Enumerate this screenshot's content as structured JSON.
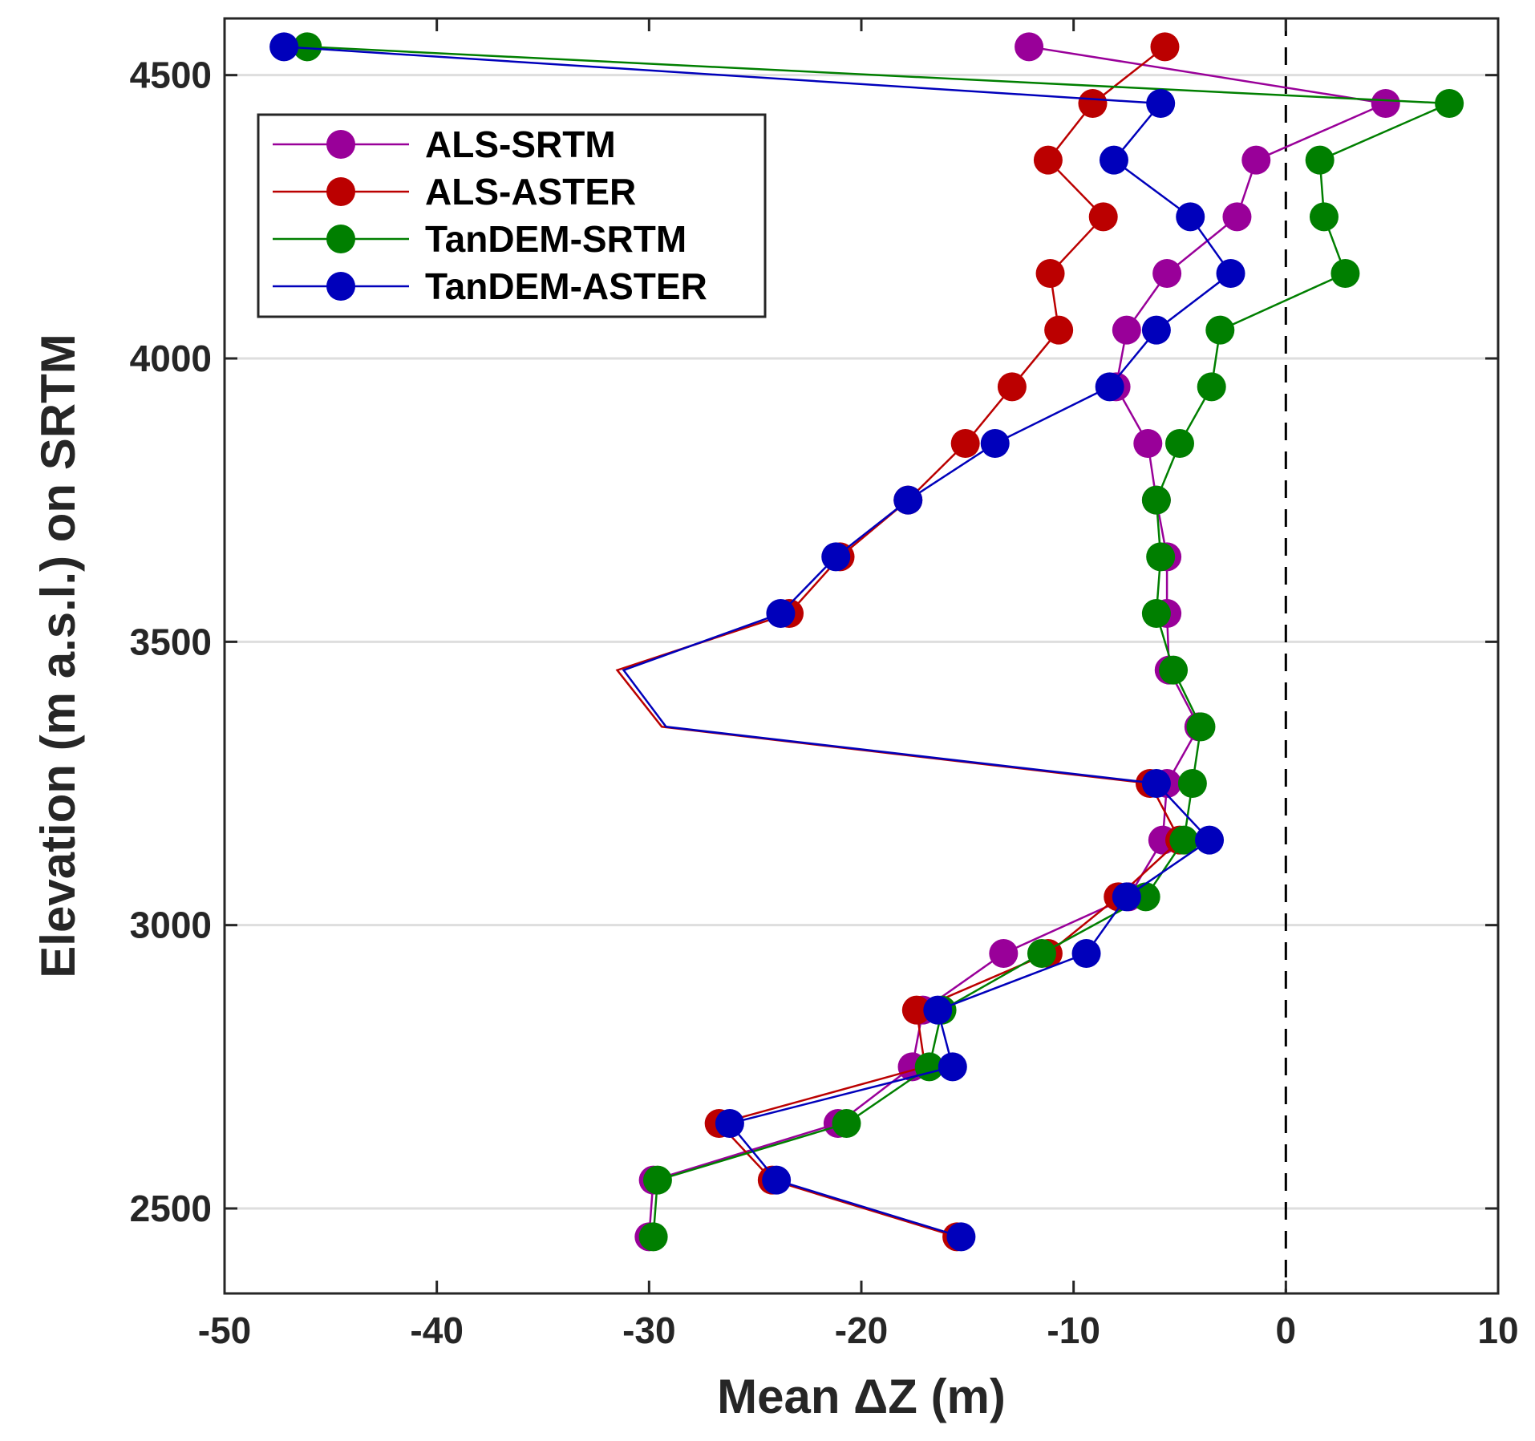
{
  "chart_data": {
    "type": "line",
    "title": "",
    "xlabel": "Mean ΔZ (m)",
    "ylabel": "Elevation (m a.s.l.) on SRTM",
    "xlim": [
      -50,
      10
    ],
    "ylim": [
      2350,
      4600
    ],
    "xticks": [
      -50,
      -40,
      -30,
      -20,
      -10,
      0,
      10
    ],
    "yticks": [
      2500,
      3000,
      3500,
      4000,
      4500
    ],
    "xtick_labels": [
      "-50",
      "-40",
      "-30",
      "-20",
      "-10",
      "0",
      "10"
    ],
    "ytick_labels": [
      "2500",
      "3000",
      "3500",
      "4000",
      "4500"
    ],
    "grid": "horizontal",
    "reference_line": {
      "x": 0,
      "style": "dashed"
    },
    "legend_position": "top-left",
    "series": [
      {
        "name": "ALS-SRTM",
        "color": "#990099",
        "points": [
          {
            "x": -30.0,
            "y": 2450,
            "marker": true
          },
          {
            "x": -29.8,
            "y": 2550,
            "marker": true
          },
          {
            "x": -21.1,
            "y": 2650,
            "marker": true
          },
          {
            "x": -17.6,
            "y": 2750,
            "marker": true
          },
          {
            "x": -17.1,
            "y": 2850,
            "marker": true
          },
          {
            "x": -13.3,
            "y": 2950,
            "marker": true
          },
          {
            "x": -7.4,
            "y": 3050,
            "marker": true
          },
          {
            "x": -5.8,
            "y": 3150,
            "marker": true
          },
          {
            "x": -5.6,
            "y": 3250,
            "marker": true
          },
          {
            "x": -4.1,
            "y": 3350,
            "marker": true
          },
          {
            "x": -5.5,
            "y": 3450,
            "marker": true
          },
          {
            "x": -5.6,
            "y": 3550,
            "marker": true
          },
          {
            "x": -5.6,
            "y": 3650,
            "marker": true
          },
          {
            "x": -6.1,
            "y": 3750,
            "marker": true
          },
          {
            "x": -6.5,
            "y": 3850,
            "marker": true
          },
          {
            "x": -8.0,
            "y": 3950,
            "marker": true
          },
          {
            "x": -7.5,
            "y": 4050,
            "marker": true
          },
          {
            "x": -5.6,
            "y": 4150,
            "marker": true
          },
          {
            "x": -2.3,
            "y": 4250,
            "marker": true
          },
          {
            "x": -1.4,
            "y": 4350,
            "marker": true
          },
          {
            "x": 4.7,
            "y": 4450,
            "marker": true
          },
          {
            "x": -12.1,
            "y": 4550,
            "marker": true
          }
        ]
      },
      {
        "name": "ALS-ASTER",
        "color": "#bb0000",
        "points": [
          {
            "x": -15.5,
            "y": 2450,
            "marker": true
          },
          {
            "x": -24.2,
            "y": 2550,
            "marker": true
          },
          {
            "x": -26.7,
            "y": 2650,
            "marker": true
          },
          {
            "x": -17.0,
            "y": 2750,
            "marker": false
          },
          {
            "x": -17.4,
            "y": 2850,
            "marker": true
          },
          {
            "x": -11.2,
            "y": 2950,
            "marker": true
          },
          {
            "x": -7.9,
            "y": 3050,
            "marker": true
          },
          {
            "x": -5.0,
            "y": 3150,
            "marker": true
          },
          {
            "x": -6.4,
            "y": 3250,
            "marker": true
          },
          {
            "x": -29.4,
            "y": 3350,
            "marker": false
          },
          {
            "x": -31.5,
            "y": 3450,
            "marker": false
          },
          {
            "x": -23.4,
            "y": 3550,
            "marker": true
          },
          {
            "x": -21.0,
            "y": 3650,
            "marker": true
          },
          {
            "x": -17.8,
            "y": 3750,
            "marker": true
          },
          {
            "x": -15.1,
            "y": 3850,
            "marker": true
          },
          {
            "x": -12.9,
            "y": 3950,
            "marker": true
          },
          {
            "x": -10.7,
            "y": 4050,
            "marker": true
          },
          {
            "x": -11.1,
            "y": 4150,
            "marker": true
          },
          {
            "x": -8.6,
            "y": 4250,
            "marker": true
          },
          {
            "x": -11.2,
            "y": 4350,
            "marker": true
          },
          {
            "x": -9.1,
            "y": 4450,
            "marker": true
          },
          {
            "x": -5.7,
            "y": 4550,
            "marker": true
          }
        ]
      },
      {
        "name": "TanDEM-SRTM",
        "color": "#007f00",
        "points": [
          {
            "x": -29.8,
            "y": 2450,
            "marker": true
          },
          {
            "x": -29.6,
            "y": 2550,
            "marker": true
          },
          {
            "x": -20.7,
            "y": 2650,
            "marker": true
          },
          {
            "x": -16.8,
            "y": 2750,
            "marker": true
          },
          {
            "x": -16.2,
            "y": 2850,
            "marker": true
          },
          {
            "x": -11.5,
            "y": 2950,
            "marker": true
          },
          {
            "x": -6.6,
            "y": 3050,
            "marker": true
          },
          {
            "x": -4.8,
            "y": 3150,
            "marker": true
          },
          {
            "x": -4.4,
            "y": 3250,
            "marker": true
          },
          {
            "x": -4.0,
            "y": 3350,
            "marker": true
          },
          {
            "x": -5.3,
            "y": 3450,
            "marker": true
          },
          {
            "x": -6.1,
            "y": 3550,
            "marker": true
          },
          {
            "x": -5.9,
            "y": 3650,
            "marker": true
          },
          {
            "x": -6.1,
            "y": 3750,
            "marker": true
          },
          {
            "x": -5.0,
            "y": 3850,
            "marker": true
          },
          {
            "x": -3.5,
            "y": 3950,
            "marker": true
          },
          {
            "x": -3.1,
            "y": 4050,
            "marker": true
          },
          {
            "x": 2.8,
            "y": 4150,
            "marker": true
          },
          {
            "x": 1.8,
            "y": 4250,
            "marker": true
          },
          {
            "x": 1.6,
            "y": 4350,
            "marker": true
          },
          {
            "x": 7.7,
            "y": 4450,
            "marker": true
          },
          {
            "x": -46.1,
            "y": 4550,
            "marker": true
          }
        ]
      },
      {
        "name": "TanDEM-ASTER",
        "color": "#0000bb",
        "points": [
          {
            "x": -15.3,
            "y": 2450,
            "marker": true
          },
          {
            "x": -24.0,
            "y": 2550,
            "marker": true
          },
          {
            "x": -26.2,
            "y": 2650,
            "marker": true
          },
          {
            "x": -15.7,
            "y": 2750,
            "marker": true
          },
          {
            "x": -16.4,
            "y": 2850,
            "marker": true
          },
          {
            "x": -9.4,
            "y": 2950,
            "marker": true
          },
          {
            "x": -7.5,
            "y": 3050,
            "marker": true
          },
          {
            "x": -3.6,
            "y": 3150,
            "marker": true
          },
          {
            "x": -6.1,
            "y": 3250,
            "marker": true
          },
          {
            "x": -29.2,
            "y": 3350,
            "marker": false
          },
          {
            "x": -31.2,
            "y": 3450,
            "marker": false
          },
          {
            "x": -23.8,
            "y": 3550,
            "marker": true
          },
          {
            "x": -21.2,
            "y": 3650,
            "marker": true
          },
          {
            "x": -17.8,
            "y": 3750,
            "marker": true
          },
          {
            "x": -13.7,
            "y": 3850,
            "marker": true
          },
          {
            "x": -8.3,
            "y": 3950,
            "marker": true
          },
          {
            "x": -6.1,
            "y": 4050,
            "marker": true
          },
          {
            "x": -2.6,
            "y": 4150,
            "marker": true
          },
          {
            "x": -4.5,
            "y": 4250,
            "marker": true
          },
          {
            "x": -8.1,
            "y": 4350,
            "marker": true
          },
          {
            "x": -5.9,
            "y": 4450,
            "marker": true
          },
          {
            "x": -47.2,
            "y": 4550,
            "marker": true
          }
        ]
      }
    ]
  }
}
